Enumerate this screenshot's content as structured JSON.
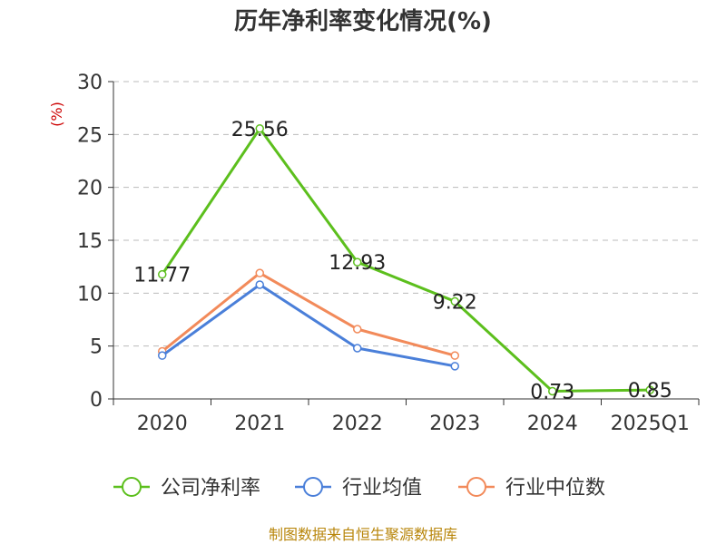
{
  "chart_data": {
    "type": "line",
    "title": "历年净利率变化情况(%)",
    "ylabel": "(%)",
    "xlabel": "",
    "categories": [
      "2020",
      "2021",
      "2022",
      "2023",
      "2024",
      "2025Q1"
    ],
    "ylim": [
      0,
      30
    ],
    "yticks": [
      0,
      5,
      10,
      15,
      20,
      25,
      30
    ],
    "grid": true,
    "legend_position": "bottom",
    "series": [
      {
        "name": "公司净利率",
        "color": "#5cbf1d",
        "values": [
          11.77,
          25.56,
          12.93,
          9.22,
          0.73,
          0.85
        ],
        "labels": [
          "11.77",
          "25.56",
          "12.93",
          "9.22",
          "0.73",
          "0.85"
        ]
      },
      {
        "name": "行业均值",
        "color": "#4a7fd9",
        "values": [
          4.1,
          10.8,
          4.8,
          3.1,
          null,
          null
        ]
      },
      {
        "name": "行业中位数",
        "color": "#f28a5a",
        "values": [
          4.5,
          11.9,
          6.6,
          4.1,
          null,
          null
        ]
      }
    ]
  },
  "footer": {
    "source": "制图数据来自恒生聚源数据库"
  }
}
